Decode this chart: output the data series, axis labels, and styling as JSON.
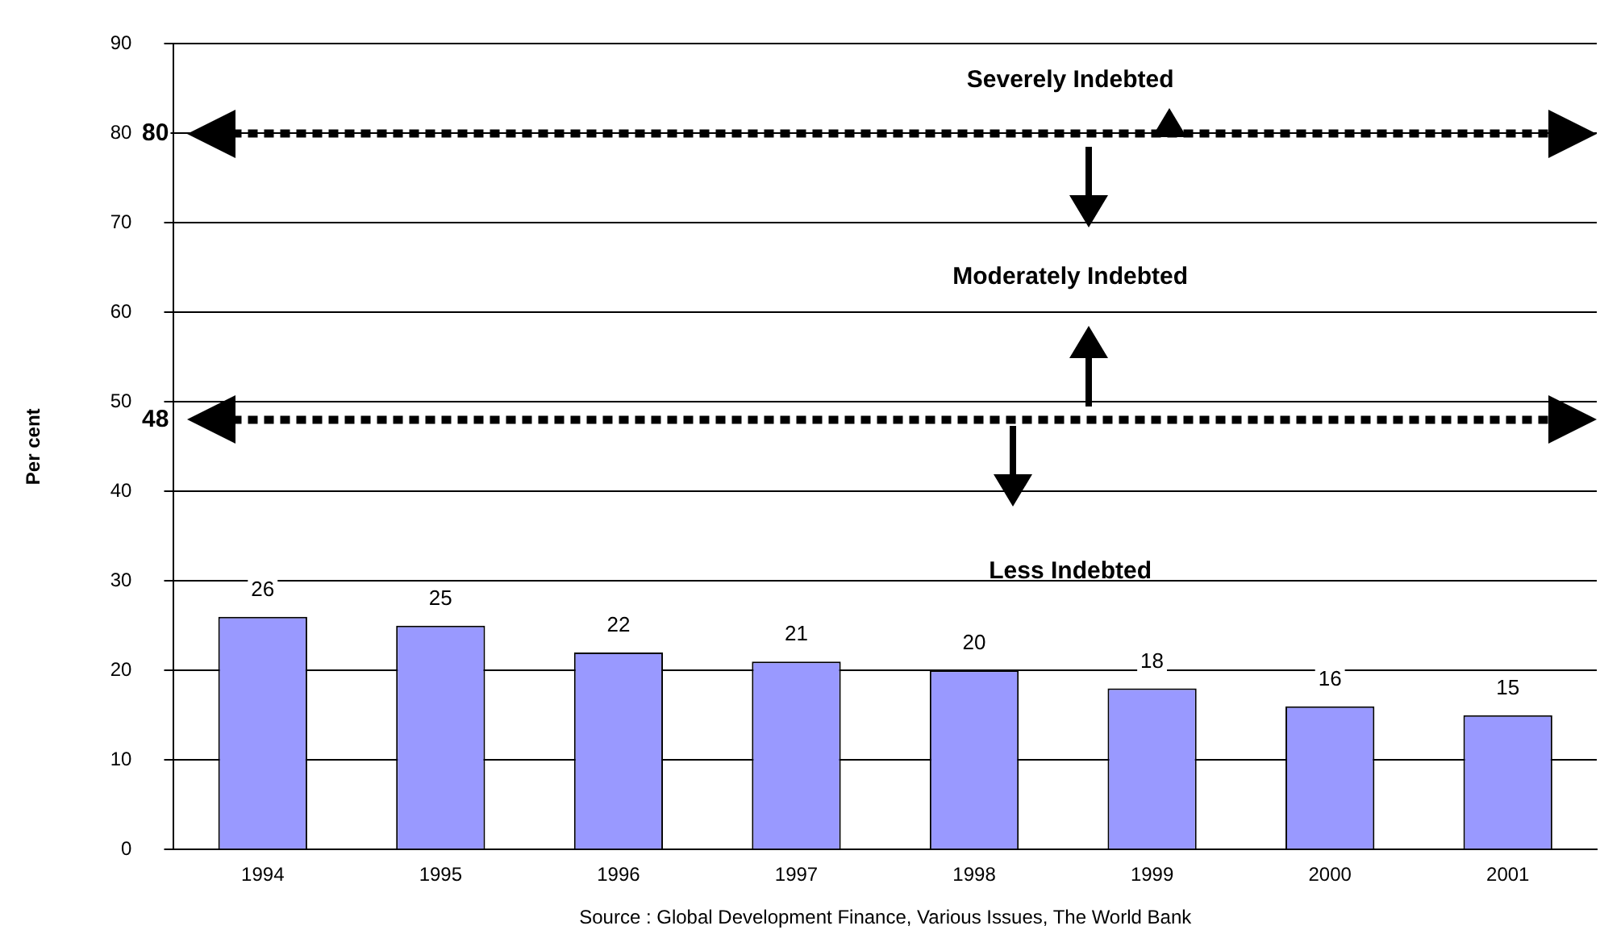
{
  "chart_data": {
    "type": "bar",
    "ylabel": "Per cent",
    "categories": [
      "1994",
      "1995",
      "1996",
      "1997",
      "1998",
      "1999",
      "2000",
      "2001"
    ],
    "values": [
      26,
      25,
      22,
      21,
      20,
      18,
      16,
      15
    ],
    "color": "#9999ff",
    "ylim": [
      0,
      90
    ],
    "yticks": [
      0,
      10,
      20,
      30,
      40,
      50,
      60,
      70,
      80,
      90
    ],
    "grid": "y",
    "data_labels": true,
    "legend": false,
    "ref_lines": [
      {
        "axis": "y",
        "value": 80,
        "label": "80",
        "color": "#000000",
        "line_style": "dotted"
      },
      {
        "axis": "y",
        "value": 48,
        "label": "48",
        "color": "#000000",
        "line_style": "dotted"
      }
    ],
    "annotations": [
      "Severely Indebted",
      "Moderately Indebted",
      "Less Indebted",
      "Source : Global Development Finance, Various Issues, The World Bank"
    ]
  }
}
